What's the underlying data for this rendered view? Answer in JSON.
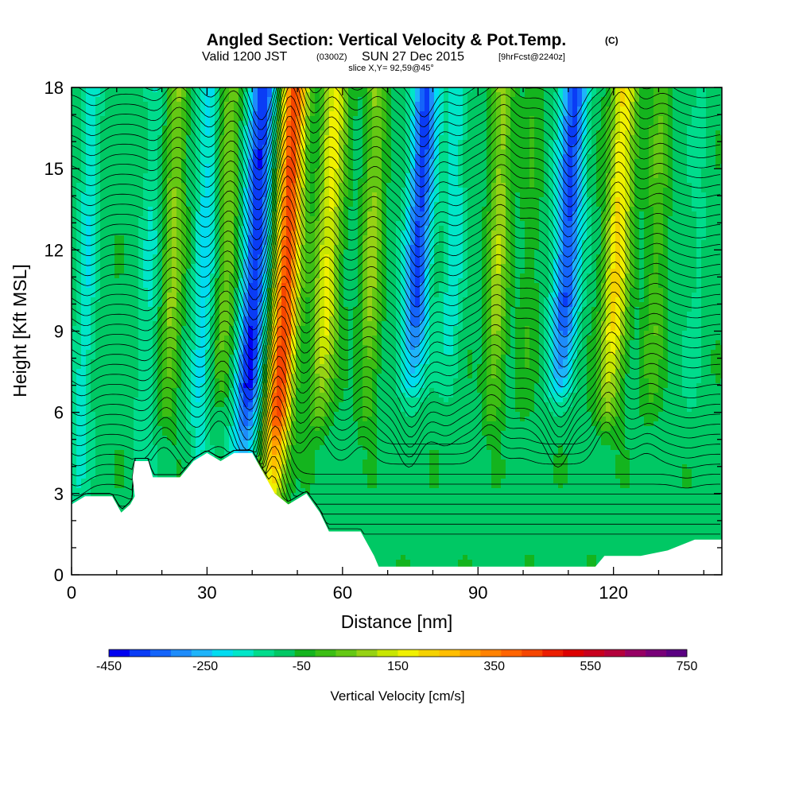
{
  "chart_data": {
    "type": "heatmap",
    "title": "Angled Section: Vertical Velocity & Pot.Temp.",
    "title_mark": "(C)",
    "valid_prefix": "Valid 1200 JST",
    "valid_zulu": "(0300Z)",
    "valid_date": "SUN 27 Dec 2015",
    "valid_fcst": "[9hrFcst@2240z]",
    "slice_label": "slice X,Y= 92,59@45°",
    "xlabel": "Distance [nm]",
    "ylabel": "Height [Kft MSL]",
    "xlim": [
      0,
      144
    ],
    "ylim": [
      0,
      18
    ],
    "xticks": [
      0,
      30,
      60,
      90,
      120
    ],
    "yticks": [
      0,
      3,
      6,
      9,
      12,
      15,
      18
    ],
    "colorbar": {
      "label": "Vertical Velocity [cm/s]",
      "min": -450,
      "max": 750,
      "step": 50,
      "tick_values": [
        -450,
        -250,
        -50,
        150,
        350,
        550,
        750
      ],
      "tick_labels": [
        "-450",
        "-250",
        "-50",
        "150",
        "350",
        "550",
        "750"
      ],
      "colors": [
        "#0000f0",
        "#0a3cf5",
        "#1464fa",
        "#1e8cfa",
        "#1eb4fa",
        "#00dcf0",
        "#00e6c8",
        "#00dc8c",
        "#00c864",
        "#14b41e",
        "#3cbe14",
        "#64c814",
        "#96d214",
        "#c8e600",
        "#f0f000",
        "#f5d200",
        "#ffbe00",
        "#ffa000",
        "#ff8200",
        "#ff6400",
        "#f54600",
        "#eb1e00",
        "#dc0000",
        "#c8001e",
        "#b4003c",
        "#960064",
        "#780078",
        "#5a0082"
      ]
    },
    "w_features": [
      {
        "x": 3,
        "z_min": 3,
        "z_max": 18,
        "w": -120
      },
      {
        "x": 17,
        "z_min": 3,
        "z_max": 18,
        "w": -80
      },
      {
        "x": 22,
        "z_min": 6,
        "z_max": 18,
        "w": 180
      },
      {
        "x": 29,
        "z_min": 4,
        "z_max": 18,
        "w": -150
      },
      {
        "x": 34,
        "z_min": 7,
        "z_max": 18,
        "w": 160
      },
      {
        "x": 40,
        "z_min": 4,
        "z_max": 18,
        "w": -380
      },
      {
        "x": 47,
        "z_min": 3,
        "z_max": 18,
        "w": 600
      },
      {
        "x": 56,
        "z_min": 6,
        "z_max": 18,
        "w": 280
      },
      {
        "x": 66,
        "z_min": 6,
        "z_max": 18,
        "w": 180
      },
      {
        "x": 76,
        "z_min": 7,
        "z_max": 18,
        "w": -340
      },
      {
        "x": 84,
        "z_min": 7,
        "z_max": 18,
        "w": -120
      },
      {
        "x": 94,
        "z_min": 6,
        "z_max": 18,
        "w": 200
      },
      {
        "x": 101,
        "z_min": 6,
        "z_max": 18,
        "w": 60
      },
      {
        "x": 109,
        "z_min": 7,
        "z_max": 18,
        "w": -340
      },
      {
        "x": 120,
        "z_min": 6,
        "z_max": 18,
        "w": 330
      },
      {
        "x": 129,
        "z_min": 6,
        "z_max": 18,
        "w": 110
      },
      {
        "x": 138,
        "z_min": 5,
        "z_max": 18,
        "w": -40
      }
    ],
    "terrain_profile": [
      [
        0,
        2.6
      ],
      [
        3,
        2.9
      ],
      [
        9,
        2.9
      ],
      [
        11,
        2.3
      ],
      [
        13,
        2.6
      ],
      [
        14,
        2.9
      ],
      [
        13.5,
        3.6
      ],
      [
        14,
        4.2
      ],
      [
        17,
        4.2
      ],
      [
        18,
        3.6
      ],
      [
        20,
        3.6
      ],
      [
        24,
        3.6
      ],
      [
        27,
        4.2
      ],
      [
        30,
        4.5
      ],
      [
        33,
        4.2
      ],
      [
        36,
        4.5
      ],
      [
        40,
        4.5
      ],
      [
        43,
        3.6
      ],
      [
        45,
        3.0
      ],
      [
        48,
        2.6
      ],
      [
        52,
        3.0
      ],
      [
        55,
        2.3
      ],
      [
        57,
        1.6
      ],
      [
        64,
        1.6
      ],
      [
        67,
        0.7
      ],
      [
        68,
        0.3
      ],
      [
        76,
        0.3
      ],
      [
        90,
        0.3
      ],
      [
        116,
        0.3
      ],
      [
        118,
        0.7
      ],
      [
        126,
        0.7
      ],
      [
        132,
        0.9
      ],
      [
        138,
        1.3
      ],
      [
        144,
        1.3
      ]
    ],
    "theta_contour_count": 46
  }
}
